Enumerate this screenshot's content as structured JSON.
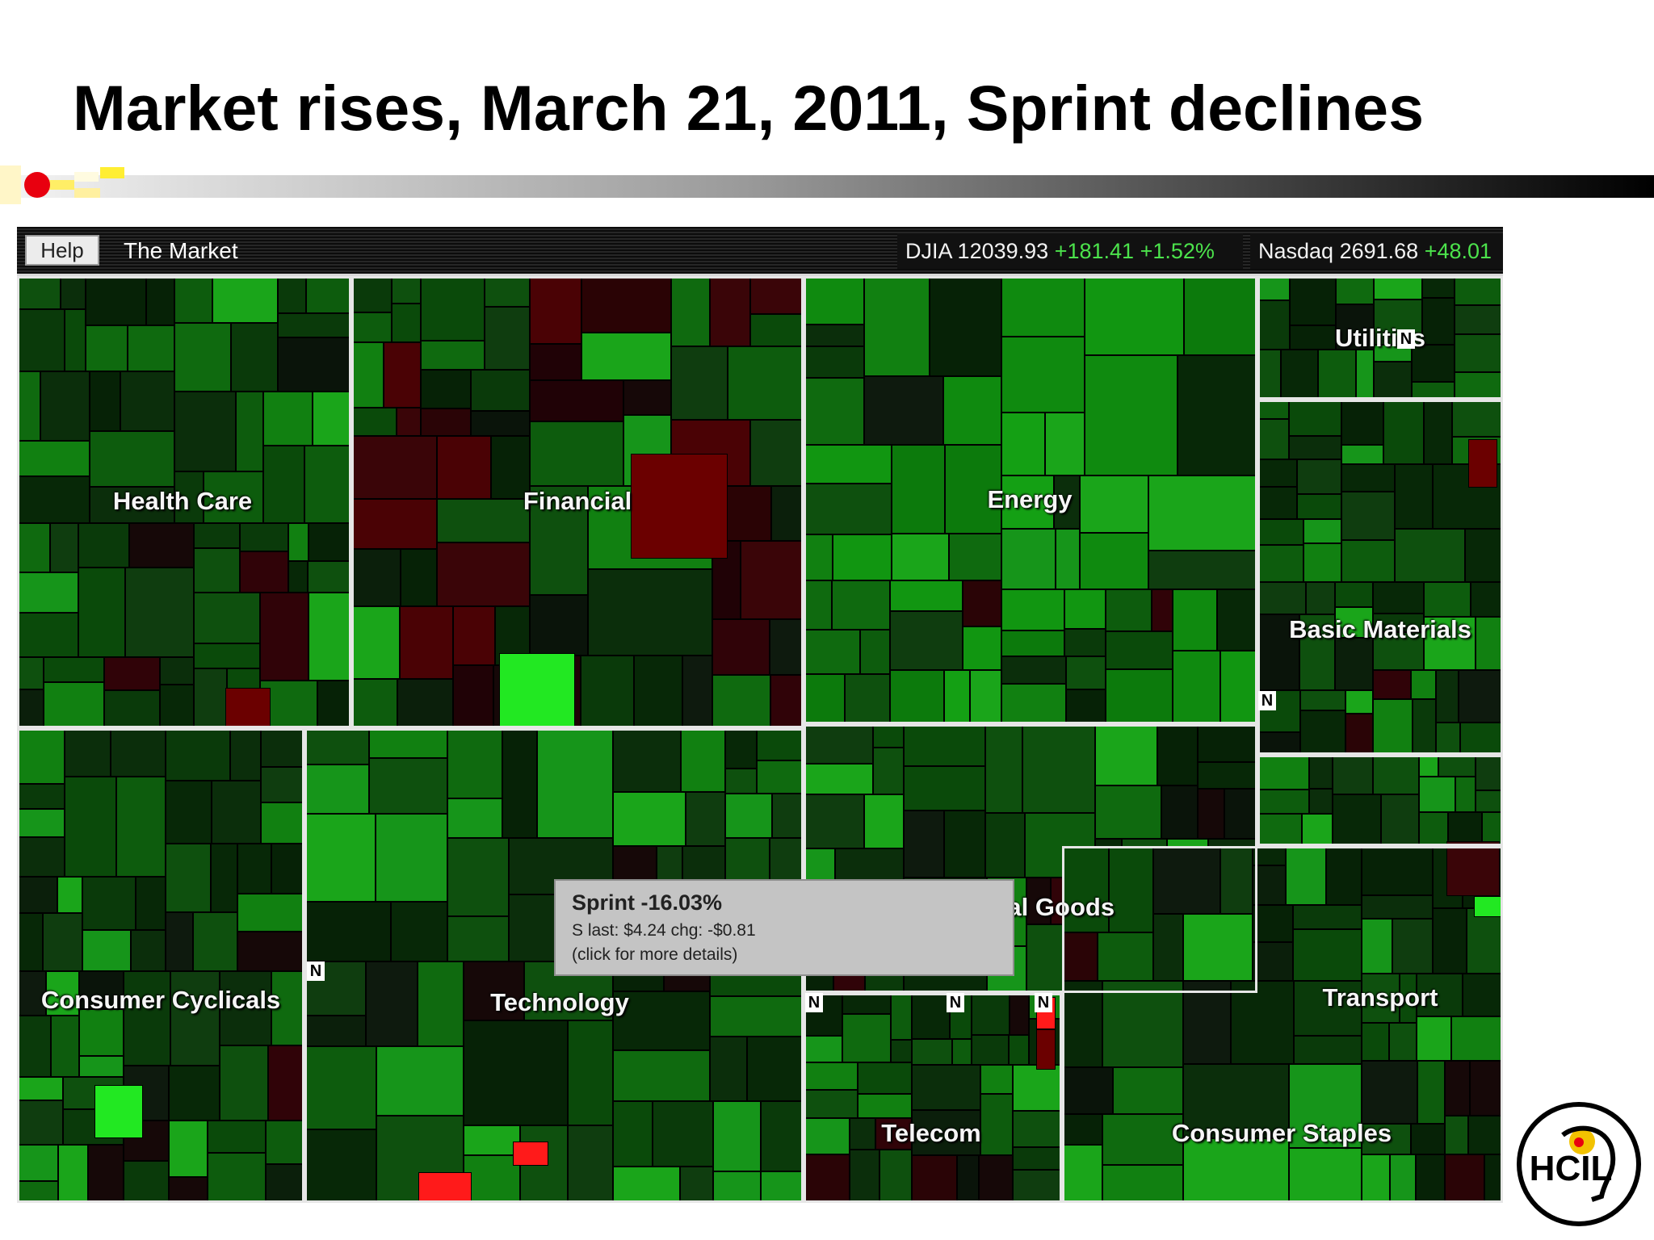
{
  "slide": {
    "title": "Market rises, March 21, 2011, Sprint declines"
  },
  "app": {
    "help_label": "Help",
    "market_label": "The Market",
    "indices": [
      {
        "name": "DJIA",
        "value": "12039.93",
        "change": "+181.41",
        "pct": "+1.52%"
      },
      {
        "name": "Nasdaq",
        "value": "2691.68",
        "change": "+48.01",
        "pct": ""
      }
    ]
  },
  "sectors": [
    {
      "id": "health-care",
      "label": "Health Care"
    },
    {
      "id": "financial",
      "label": "Financial"
    },
    {
      "id": "energy",
      "label": "Energy"
    },
    {
      "id": "utilities",
      "label": "Utilities"
    },
    {
      "id": "basic-materials",
      "label": "Basic Materials"
    },
    {
      "id": "consumer-cyclicals",
      "label": "Consumer Cyclicals"
    },
    {
      "id": "technology",
      "label": "Technology"
    },
    {
      "id": "capital-goods",
      "label": "Capital Goods"
    },
    {
      "id": "transport",
      "label": "Transport"
    },
    {
      "id": "telecom",
      "label": "Telecom"
    },
    {
      "id": "consumer-staples",
      "label": "Consumer Staples"
    }
  ],
  "news_badge": "N",
  "tooltip": {
    "headline": "Sprint -16.03%",
    "detail": "S last: $4.24 chg: -$0.81",
    "hint": "(click for more details)"
  },
  "logo": {
    "text": "HCIL"
  },
  "colors": {
    "strong_gain": "#22e822",
    "gain": "#0d8c0d",
    "slight_gain": "#064a06",
    "flat": "#0a1a0a",
    "slight_loss": "#3a0508",
    "loss": "#6b0000",
    "strong_loss": "#ff1a1a",
    "border": "#e6e6e6"
  }
}
